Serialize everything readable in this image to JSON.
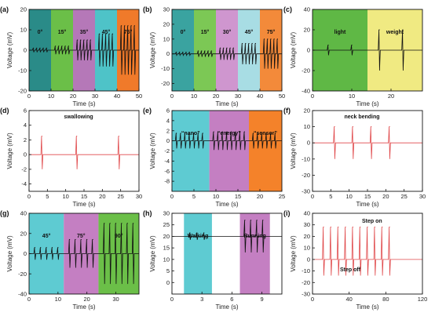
{
  "chart_data": [
    {
      "panel": "(a)",
      "type": "line",
      "xlabel": "Time (s)",
      "ylabel": "Voltage (mV)",
      "xlim": [
        0,
        50
      ],
      "ylim": [
        -20,
        20
      ],
      "xticks": [
        0,
        10,
        20,
        30,
        40,
        50
      ],
      "yticks": [
        -20,
        -10,
        0,
        10,
        20
      ],
      "regions": [
        {
          "x0": 0,
          "x1": 10,
          "color": "#2a8b88",
          "label": "0°"
        },
        {
          "x0": 10,
          "x1": 20,
          "color": "#6bbf48",
          "label": "15°"
        },
        {
          "x0": 20,
          "x1": 30,
          "color": "#b578b8",
          "label": "35°"
        },
        {
          "x0": 30,
          "x1": 40,
          "color": "#4ec3c8",
          "label": "45°"
        },
        {
          "x0": 40,
          "x1": 50,
          "color": "#f07a2a",
          "label": "75°"
        }
      ],
      "spike_groups": [
        {
          "times": [
            2,
            3.5,
            5,
            6.5,
            8
          ],
          "up": 1,
          "down": -1
        },
        {
          "times": [
            12,
            13.5,
            15,
            16.5,
            18
          ],
          "up": 2,
          "down": -2
        },
        {
          "times": [
            22,
            23.5,
            25,
            26.5,
            28
          ],
          "up": 5,
          "down": -5
        },
        {
          "times": [
            32,
            33.5,
            35,
            36.5,
            38
          ],
          "up": 8,
          "down": -8
        },
        {
          "times": [
            42,
            43.5,
            45,
            46.5,
            48
          ],
          "up": 12,
          "down": -12
        }
      ],
      "line_color": "#111111"
    },
    {
      "panel": "(b)",
      "type": "line",
      "xlabel": "Time (s)",
      "ylabel": "Voltage (mV)",
      "xlim": [
        0,
        50
      ],
      "ylim": [
        -25,
        30
      ],
      "xticks": [
        0,
        10,
        20,
        30,
        40,
        50
      ],
      "yticks": [
        -20,
        -10,
        0,
        10,
        20,
        30
      ],
      "regions": [
        {
          "x0": 0,
          "x1": 10,
          "color": "#3aa3a0",
          "label": "0°"
        },
        {
          "x0": 10,
          "x1": 20,
          "color": "#7cc855",
          "label": "15°"
        },
        {
          "x0": 20,
          "x1": 30,
          "color": "#cf96cf",
          "label": "30°"
        },
        {
          "x0": 30,
          "x1": 40,
          "color": "#a8dde4",
          "label": "45°"
        },
        {
          "x0": 40,
          "x1": 50,
          "color": "#f38a3a",
          "label": "75°"
        }
      ],
      "spike_groups": [
        {
          "times": [
            2,
            3.5,
            5,
            6.5,
            8
          ],
          "up": 1,
          "down": -1
        },
        {
          "times": [
            12,
            13.5,
            15,
            16.5,
            18
          ],
          "up": 2,
          "down": -2
        },
        {
          "times": [
            22,
            23.5,
            25,
            26.5,
            28
          ],
          "up": 4,
          "down": -4
        },
        {
          "times": [
            32,
            33.5,
            35,
            36.5,
            38
          ],
          "up": 7,
          "down": -7
        },
        {
          "times": [
            42,
            43.5,
            45,
            46.5,
            48
          ],
          "up": 10,
          "down": -10
        }
      ],
      "line_color": "#111111"
    },
    {
      "panel": "(c)",
      "type": "line",
      "xlabel": "Time (s)",
      "ylabel": "Voltage (mV)",
      "xlim": [
        0,
        28
      ],
      "ylim": [
        -40,
        40
      ],
      "xticks": [
        0,
        10,
        20
      ],
      "yticks": [
        -40,
        -20,
        0,
        20,
        40
      ],
      "regions": [
        {
          "x0": 0,
          "x1": 14,
          "color": "#5fb845",
          "label": "light"
        },
        {
          "x0": 14,
          "x1": 28,
          "color": "#f0ea82",
          "label": "weight"
        }
      ],
      "spike_groups": [
        {
          "times": [
            4,
            10
          ],
          "up": 5,
          "down": -5
        },
        {
          "times": [
            17,
            23
          ],
          "up": 20,
          "down": -20
        }
      ],
      "line_color": "#111111"
    },
    {
      "panel": "(d)",
      "type": "line",
      "xlabel": "Time (s)",
      "ylabel": "Voltage (mV)",
      "xlim": [
        0,
        30
      ],
      "ylim": [
        -5,
        6
      ],
      "xticks": [
        0,
        5,
        10,
        15,
        20,
        25,
        30
      ],
      "yticks": [
        -4,
        -2,
        0,
        2,
        4,
        6
      ],
      "regions": [],
      "annotation": "swallowing",
      "spike_groups": [
        {
          "times": [
            3.5,
            13,
            24.5
          ],
          "up": 2.5,
          "down": -2
        }
      ],
      "line_color": "#e0484a"
    },
    {
      "panel": "(e)",
      "type": "line",
      "xlabel": "Time (s)",
      "ylabel": "Voltage (mV)",
      "xlim": [
        0,
        25
      ],
      "ylim": [
        -10,
        6
      ],
      "xticks": [
        0,
        5,
        10,
        15,
        20,
        25
      ],
      "yticks": [
        -8,
        -6,
        -4,
        -2,
        0,
        2,
        4,
        6
      ],
      "regions": [
        {
          "x0": 0,
          "x1": 8.5,
          "color": "#5ecbd2",
          "label": "“nano”"
        },
        {
          "x0": 8.5,
          "x1": 17.5,
          "color": "#c47fc2",
          "label": "“energy”"
        },
        {
          "x0": 17.5,
          "x1": 25,
          "color": "#f4822a",
          "label": "“sensor”"
        }
      ],
      "spike_groups": [
        {
          "times": [
            1,
            2,
            3,
            4,
            5,
            6,
            7
          ],
          "up": 1.5,
          "down": -1.5
        },
        {
          "times": [
            9.5,
            10.5,
            11.5,
            12.5,
            13.5,
            14.5,
            15.5,
            16.5
          ],
          "up": 1.8,
          "down": -1.8
        },
        {
          "times": [
            18.5,
            19.5,
            20.5,
            21.5,
            22.5,
            23.5
          ],
          "up": 1.5,
          "down": -1.5
        }
      ],
      "line_color": "#111111"
    },
    {
      "panel": "(f)",
      "type": "line",
      "xlabel": "Time (s)",
      "ylabel": "Voltage (mV)",
      "xlim": [
        0,
        30
      ],
      "ylim": [
        -30,
        20
      ],
      "xticks": [
        0,
        5,
        10,
        15,
        20,
        25,
        30
      ],
      "yticks": [
        -30,
        -20,
        -10,
        0,
        10,
        20
      ],
      "regions": [],
      "annotation": "neck bending",
      "spike_groups": [
        {
          "times": [
            6,
            11,
            16,
            21
          ],
          "up": 10,
          "down": -10
        }
      ],
      "line_color": "#e0484a"
    },
    {
      "panel": "(g)",
      "type": "line",
      "xlabel": "Time (s)",
      "ylabel": "Voltage (mV)",
      "xlim": [
        0,
        38
      ],
      "ylim": [
        -40,
        40
      ],
      "xticks": [
        0,
        10,
        20,
        30
      ],
      "yticks": [
        -40,
        -20,
        0,
        20,
        40
      ],
      "regions": [
        {
          "x0": 0,
          "x1": 12,
          "color": "#5ecbd2",
          "label": "45°"
        },
        {
          "x0": 12,
          "x1": 24,
          "color": "#c47fc2",
          "label": "75°"
        },
        {
          "x0": 24,
          "x1": 38,
          "color": "#6bbf48",
          "label": "90°"
        }
      ],
      "spike_groups": [
        {
          "times": [
            2,
            4,
            6,
            8,
            10
          ],
          "up": 6,
          "down": -6
        },
        {
          "times": [
            14,
            16,
            18,
            20,
            22
          ],
          "up": 14,
          "down": -14
        },
        {
          "times": [
            26,
            28,
            30,
            32,
            34,
            36
          ],
          "up": 30,
          "down": -30
        }
      ],
      "line_color": "#111111"
    },
    {
      "panel": "(h)",
      "type": "line",
      "xlabel": "Time (s)",
      "ylabel": "Voltage (mV)",
      "xlim": [
        0,
        11
      ],
      "ylim": [
        -5,
        30
      ],
      "xticks": [
        0,
        3,
        6,
        9
      ],
      "yticks": [
        0,
        5,
        10,
        15,
        20,
        25,
        30
      ],
      "baseline": 20,
      "regions": [
        {
          "x0": 1.2,
          "x1": 4,
          "color": "#5ecbd2",
          "label": "Walking"
        },
        {
          "x0": 6.8,
          "x1": 9.8,
          "color": "#c47fc2",
          "label": "Running"
        }
      ],
      "spike_groups": [
        {
          "times": [
            1.8,
            2.5,
            3.2
          ],
          "up": 1.5,
          "down": -1.5
        },
        {
          "times": [
            7.3,
            7.9,
            8.5,
            9.1
          ],
          "up": 7,
          "down": -7
        }
      ],
      "line_color": "#111111"
    },
    {
      "panel": "(i)",
      "type": "line",
      "xlabel": "Time (s)",
      "ylabel": "Voltage (mV)",
      "xlim": [
        0,
        120
      ],
      "ylim": [
        -30,
        40
      ],
      "xticks": [
        0,
        40,
        80,
        120
      ],
      "yticks": [
        -30,
        -20,
        -10,
        0,
        10,
        20,
        30,
        40
      ],
      "regions": [],
      "annotations": [
        "Step on",
        "Step off"
      ],
      "spike_groups": [
        {
          "times": [
            12,
            20,
            28,
            36,
            44,
            52,
            60,
            68,
            76,
            84
          ],
          "up": 28,
          "down": -14
        }
      ],
      "line_color": "#e0484a"
    }
  ]
}
